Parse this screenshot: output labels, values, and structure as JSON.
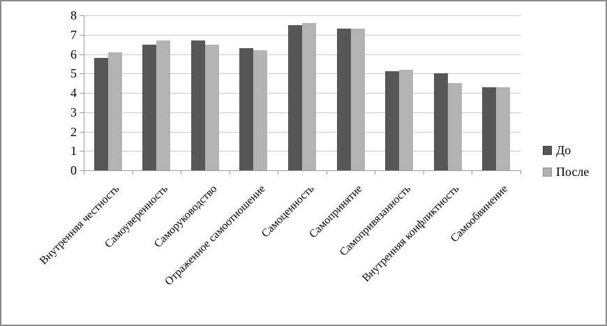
{
  "figure": {
    "background": "#ffffff",
    "border_color": "#8a8a8a"
  },
  "colors": {
    "bar_dark": "#575757",
    "bar_light": "#b3b3b3",
    "gridline": "#c9c9c9",
    "axis": "#9a9a9a",
    "text": "#000000"
  },
  "legend": {
    "position": "right",
    "items": [
      {
        "label": "До",
        "color": "#575757",
        "border": "#3f3f3f"
      },
      {
        "label": "После",
        "color": "#b3b3b3",
        "border": "#8f8f8f"
      }
    ]
  },
  "chart_data": {
    "type": "bar",
    "title": "",
    "xlabel": "",
    "ylabel": "",
    "categories": [
      "Внутренняя честность",
      "Самоуверенность",
      "Саморуководство",
      "Отраженное самоотношение",
      "Самоценность",
      "Самопринятие",
      "Самопривязанность",
      "Внутренняя конфликтность",
      "Самообвинение"
    ],
    "series": [
      {
        "name": "До",
        "color": "#575757",
        "values": [
          5.8,
          6.5,
          6.7,
          6.3,
          7.5,
          7.3,
          5.1,
          5.0,
          4.3
        ]
      },
      {
        "name": "После",
        "color": "#b3b3b3",
        "values": [
          6.1,
          6.7,
          6.5,
          6.2,
          7.6,
          7.3,
          5.2,
          4.5,
          4.3
        ]
      }
    ],
    "ylim": [
      0,
      8
    ],
    "yticks": [
      0,
      1,
      2,
      3,
      4,
      5,
      6,
      7,
      8
    ],
    "grid": true,
    "legend_position": "right"
  }
}
